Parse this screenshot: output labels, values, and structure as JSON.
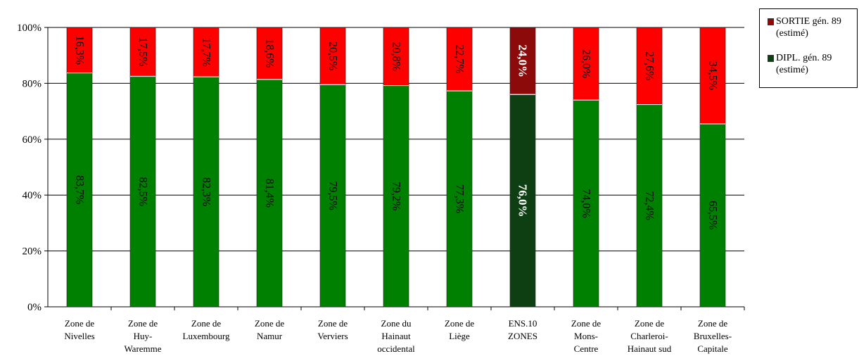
{
  "chart_data": {
    "type": "bar",
    "stacked": true,
    "percent": true,
    "categories": [
      "Zone de\nNivelles",
      "Zone de\nHuy-\nWaremme",
      "Zone de\nLuxembourg",
      "Zone de\nNamur",
      "Zone de\nVerviers",
      "Zone du\nHainaut\noccidental",
      "Zone de\nLiège",
      "ENS.10\nZONES",
      "Zone de\nMons-\nCentre",
      "Zone de\nCharleroi-\nHainaut sud",
      "Zone de\nBruxelles-\nCapitale"
    ],
    "series": [
      {
        "name": "DIPL. gén. 89\n(estimé)",
        "color": "#008000",
        "highlight_color": "#0d3f12",
        "values": [
          83.7,
          82.5,
          82.3,
          81.4,
          79.5,
          79.2,
          77.3,
          76.0,
          74.0,
          72.4,
          65.5
        ],
        "labels": [
          "83,7%",
          "82,5%",
          "82,3%",
          "81,4%",
          "79,5%",
          "79,2%",
          "77,3%",
          "76,0%",
          "74,0%",
          "72,4%",
          "65,5%"
        ]
      },
      {
        "name": "SORTIE gén. 89\n(estimé)",
        "color": "#ff0000",
        "highlight_color": "#8c0a0a",
        "values": [
          16.3,
          17.5,
          17.7,
          18.6,
          20.5,
          20.8,
          22.7,
          24.0,
          26.0,
          27.6,
          34.5
        ],
        "labels": [
          "16,3%",
          "17,5%",
          "17,7%",
          "18,6%",
          "20,5%",
          "20,8%",
          "22,7%",
          "24,0%",
          "26,0%",
          "27,6%",
          "34,5%"
        ]
      }
    ],
    "highlight_index": 7,
    "ylim": [
      0,
      100
    ],
    "yticks": [
      "0%",
      "20%",
      "40%",
      "60%",
      "80%",
      "100%"
    ],
    "grid": true,
    "legend_position": "top-right",
    "legend_order": [
      1,
      0
    ]
  }
}
